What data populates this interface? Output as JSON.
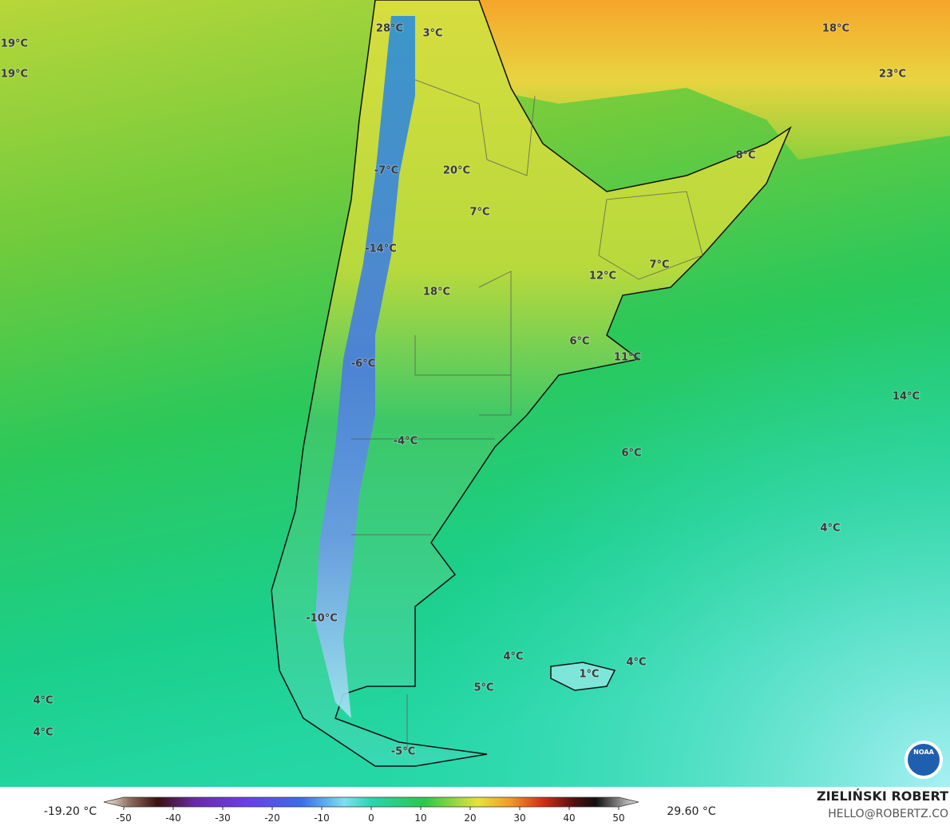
{
  "map": {
    "labels": [
      "28°C",
      "3°C",
      "18°C",
      "19°C",
      "19°C",
      "23°C",
      "8°C",
      "-7°C",
      "20°C",
      "7°C",
      "-14°C",
      "12°C",
      "7°C",
      "18°C",
      "6°C",
      "11°C",
      "-6°C",
      "14°C",
      "-4°C",
      "6°C",
      "4°C",
      "-10°C",
      "4°C",
      "4°C",
      "1°C",
      "5°C",
      "4°C",
      "4°C",
      "-5°C"
    ]
  },
  "colorbar": {
    "min_label": "-19.20 °C",
    "max_label": "29.60 °C",
    "lim": [
      -50,
      50
    ],
    "ticks": [
      -50,
      -40,
      -30,
      -20,
      -10,
      0,
      10,
      20,
      30,
      40,
      50
    ]
  },
  "credit": {
    "author": "ZIELIŃSKI ROBERT",
    "email": "HELLO@ROBERTZ.CO"
  }
}
